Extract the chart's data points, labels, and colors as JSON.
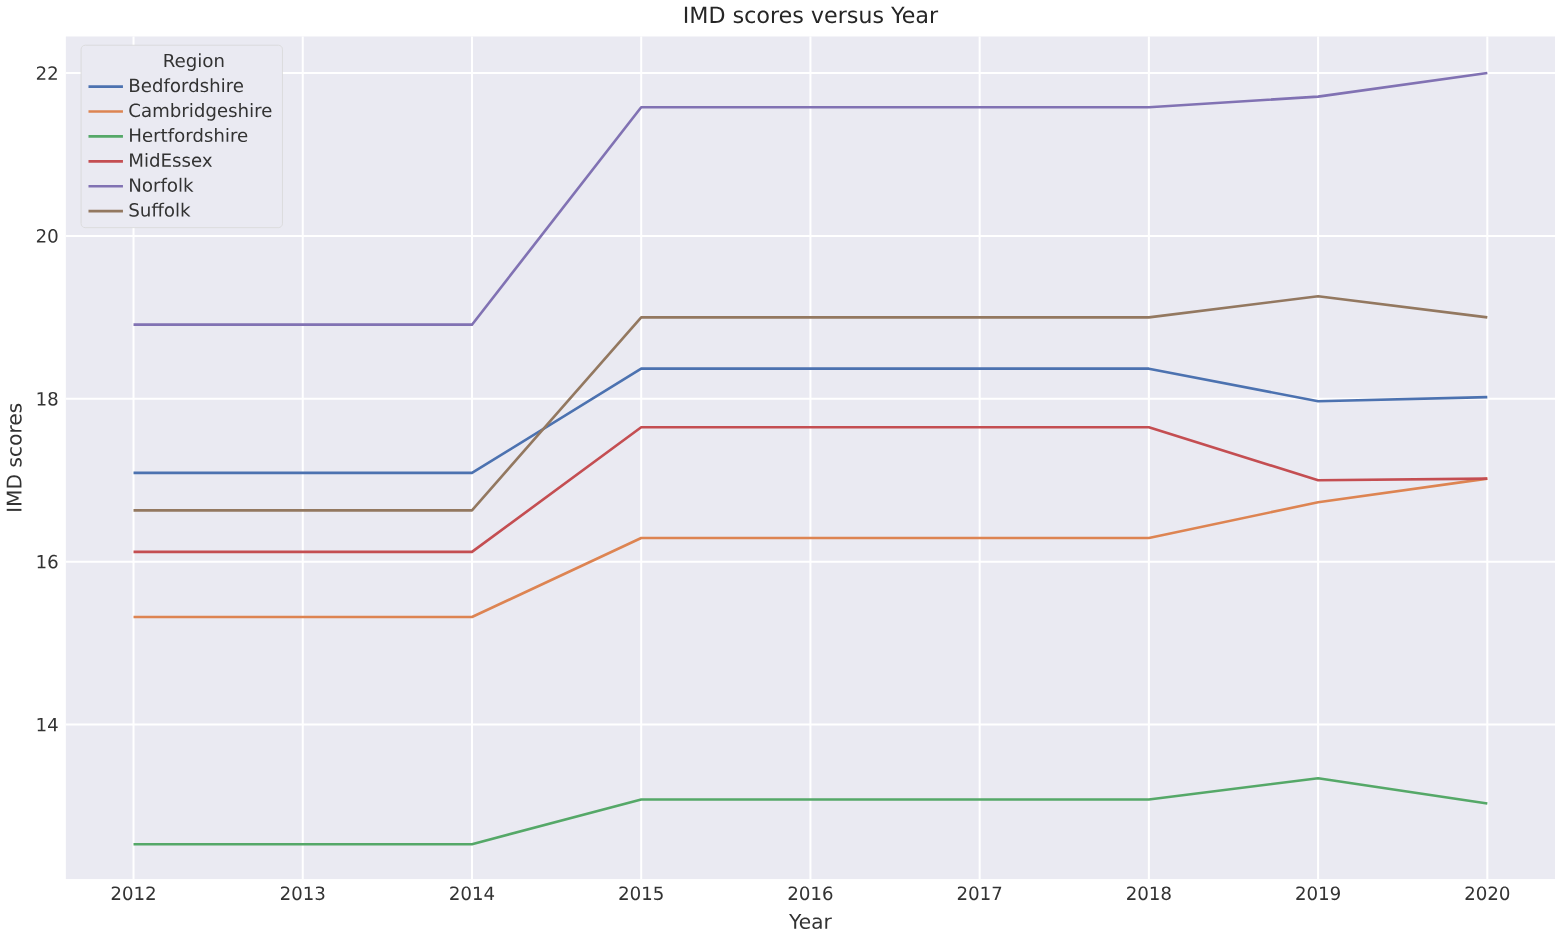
{
  "chart_data": {
    "type": "line",
    "title": "IMD scores versus Year",
    "xlabel": "Year",
    "ylabel": "IMD scores",
    "legend_title": "Region",
    "legend": "top left",
    "grid": true,
    "x": [
      2012,
      2013,
      2014,
      2015,
      2016,
      2017,
      2018,
      2019,
      2020
    ],
    "xlim": [
      2011.6,
      2020.4
    ],
    "xticks": [
      2012,
      2013,
      2014,
      2015,
      2016,
      2017,
      2018,
      2019,
      2020
    ],
    "ylim": [
      12.1,
      22.45
    ],
    "yticks": [
      14,
      16,
      18,
      20,
      22
    ],
    "series": [
      {
        "name": "Bedfordshire",
        "color": "#4c72b0",
        "values": [
          17.09,
          17.09,
          17.09,
          18.37,
          18.37,
          18.37,
          18.37,
          17.97,
          18.02
        ]
      },
      {
        "name": "Cambridgeshire",
        "color": "#dd8452",
        "values": [
          15.32,
          15.32,
          15.32,
          16.29,
          16.29,
          16.29,
          16.29,
          16.73,
          17.02
        ]
      },
      {
        "name": "Hertfordshire",
        "color": "#55a868",
        "values": [
          12.53,
          12.53,
          12.53,
          13.08,
          13.08,
          13.08,
          13.08,
          13.34,
          13.03
        ]
      },
      {
        "name": "MidEssex",
        "color": "#c44e52",
        "values": [
          16.12,
          16.12,
          16.12,
          17.65,
          17.65,
          17.65,
          17.65,
          17.0,
          17.02
        ]
      },
      {
        "name": "Norfolk",
        "color": "#8172b3",
        "values": [
          18.91,
          18.91,
          18.91,
          21.58,
          21.58,
          21.58,
          21.58,
          21.71,
          22.0
        ]
      },
      {
        "name": "Suffolk",
        "color": "#937860",
        "values": [
          16.63,
          16.63,
          16.63,
          19.0,
          19.0,
          19.0,
          19.0,
          19.26,
          19.0
        ]
      }
    ]
  }
}
